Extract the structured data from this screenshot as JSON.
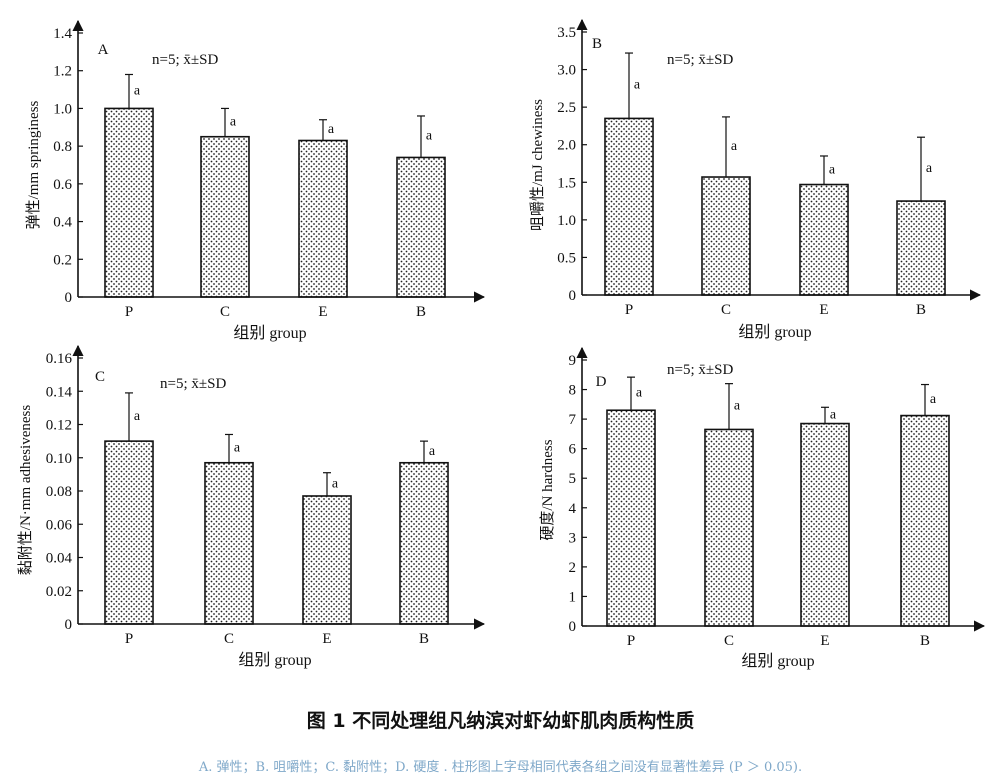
{
  "colors": {
    "axis": "#111111",
    "bar_stroke": "#111111",
    "dots": "#222222",
    "error": "#111111",
    "note": "#7fa8c9"
  },
  "chart_data": [
    {
      "type": "bar",
      "panel": "A",
      "annotation": "n=5; x̄±SD",
      "categories": [
        "P",
        "C",
        "E",
        "B"
      ],
      "values": [
        1.0,
        0.85,
        0.83,
        0.74
      ],
      "errors": [
        0.18,
        0.15,
        0.11,
        0.22
      ],
      "letters": [
        "a",
        "a",
        "a",
        "a"
      ],
      "ylim": [
        0,
        1.4
      ],
      "yticks": [
        0,
        0.2,
        0.4,
        0.6,
        0.8,
        1.0,
        1.2,
        1.4
      ],
      "ytick_labels": [
        "0",
        "0.2",
        "0.4",
        "0.6",
        "0.8",
        "1.0",
        "1.2",
        "1.4"
      ],
      "ylabel": "弹性/mm springiness",
      "xlabel": "组别 group"
    },
    {
      "type": "bar",
      "panel": "B",
      "annotation": "n=5; x̄±SD",
      "categories": [
        "P",
        "C",
        "E",
        "B"
      ],
      "values": [
        2.35,
        1.57,
        1.47,
        1.25
      ],
      "errors": [
        0.87,
        0.8,
        0.38,
        0.85
      ],
      "letters": [
        "a",
        "a",
        "a",
        "a"
      ],
      "ylim": [
        0,
        3.5
      ],
      "yticks": [
        0,
        0.5,
        1.0,
        1.5,
        2.0,
        2.5,
        3.0,
        3.5
      ],
      "ytick_labels": [
        "0",
        "0.5",
        "1.0",
        "1.5",
        "2.0",
        "2.5",
        "3.0",
        "3.5"
      ],
      "ylabel": "咀嚼性/mJ chewiness",
      "xlabel": "组别 group"
    },
    {
      "type": "bar",
      "panel": "C",
      "annotation": "n=5; x̄±SD",
      "categories": [
        "P",
        "C",
        "E",
        "B"
      ],
      "values": [
        0.11,
        0.097,
        0.077,
        0.097
      ],
      "errors": [
        0.029,
        0.017,
        0.014,
        0.013
      ],
      "letters": [
        "a",
        "a",
        "a",
        "a"
      ],
      "ylim": [
        0,
        0.16
      ],
      "yticks": [
        0,
        0.02,
        0.04,
        0.06,
        0.08,
        0.1,
        0.12,
        0.14,
        0.16
      ],
      "ytick_labels": [
        "0",
        "0.02",
        "0.04",
        "0.06",
        "0.08",
        "0.10",
        "0.12",
        "0.14",
        "0.16"
      ],
      "ylabel": "黏附性/N·mm adhesiveness",
      "xlabel": "组别 group"
    },
    {
      "type": "bar",
      "panel": "D",
      "annotation": "n=5; x̄±SD",
      "categories": [
        "P",
        "C",
        "E",
        "B"
      ],
      "values": [
        7.3,
        6.65,
        6.85,
        7.12
      ],
      "errors": [
        1.12,
        1.55,
        0.55,
        1.05
      ],
      "letters": [
        "a",
        "a",
        "a",
        "a"
      ],
      "ylim": [
        0,
        9
      ],
      "yticks": [
        0,
        1,
        2,
        3,
        4,
        5,
        6,
        7,
        8,
        9
      ],
      "ytick_labels": [
        "0",
        "1",
        "2",
        "3",
        "4",
        "5",
        "6",
        "7",
        "8",
        "9"
      ],
      "ylabel": "硬度/N hardness",
      "xlabel": "组别 group"
    }
  ],
  "caption": {
    "title": "图 1 不同处理组凡纳滨对虾幼虾肌肉质构性质",
    "note": "A. 弹性；B. 咀嚼性；C. 黏附性；D. 硬度 . 柱形图上字母相同代表各组之间没有显著性差异 (P ＞ 0.05)."
  }
}
